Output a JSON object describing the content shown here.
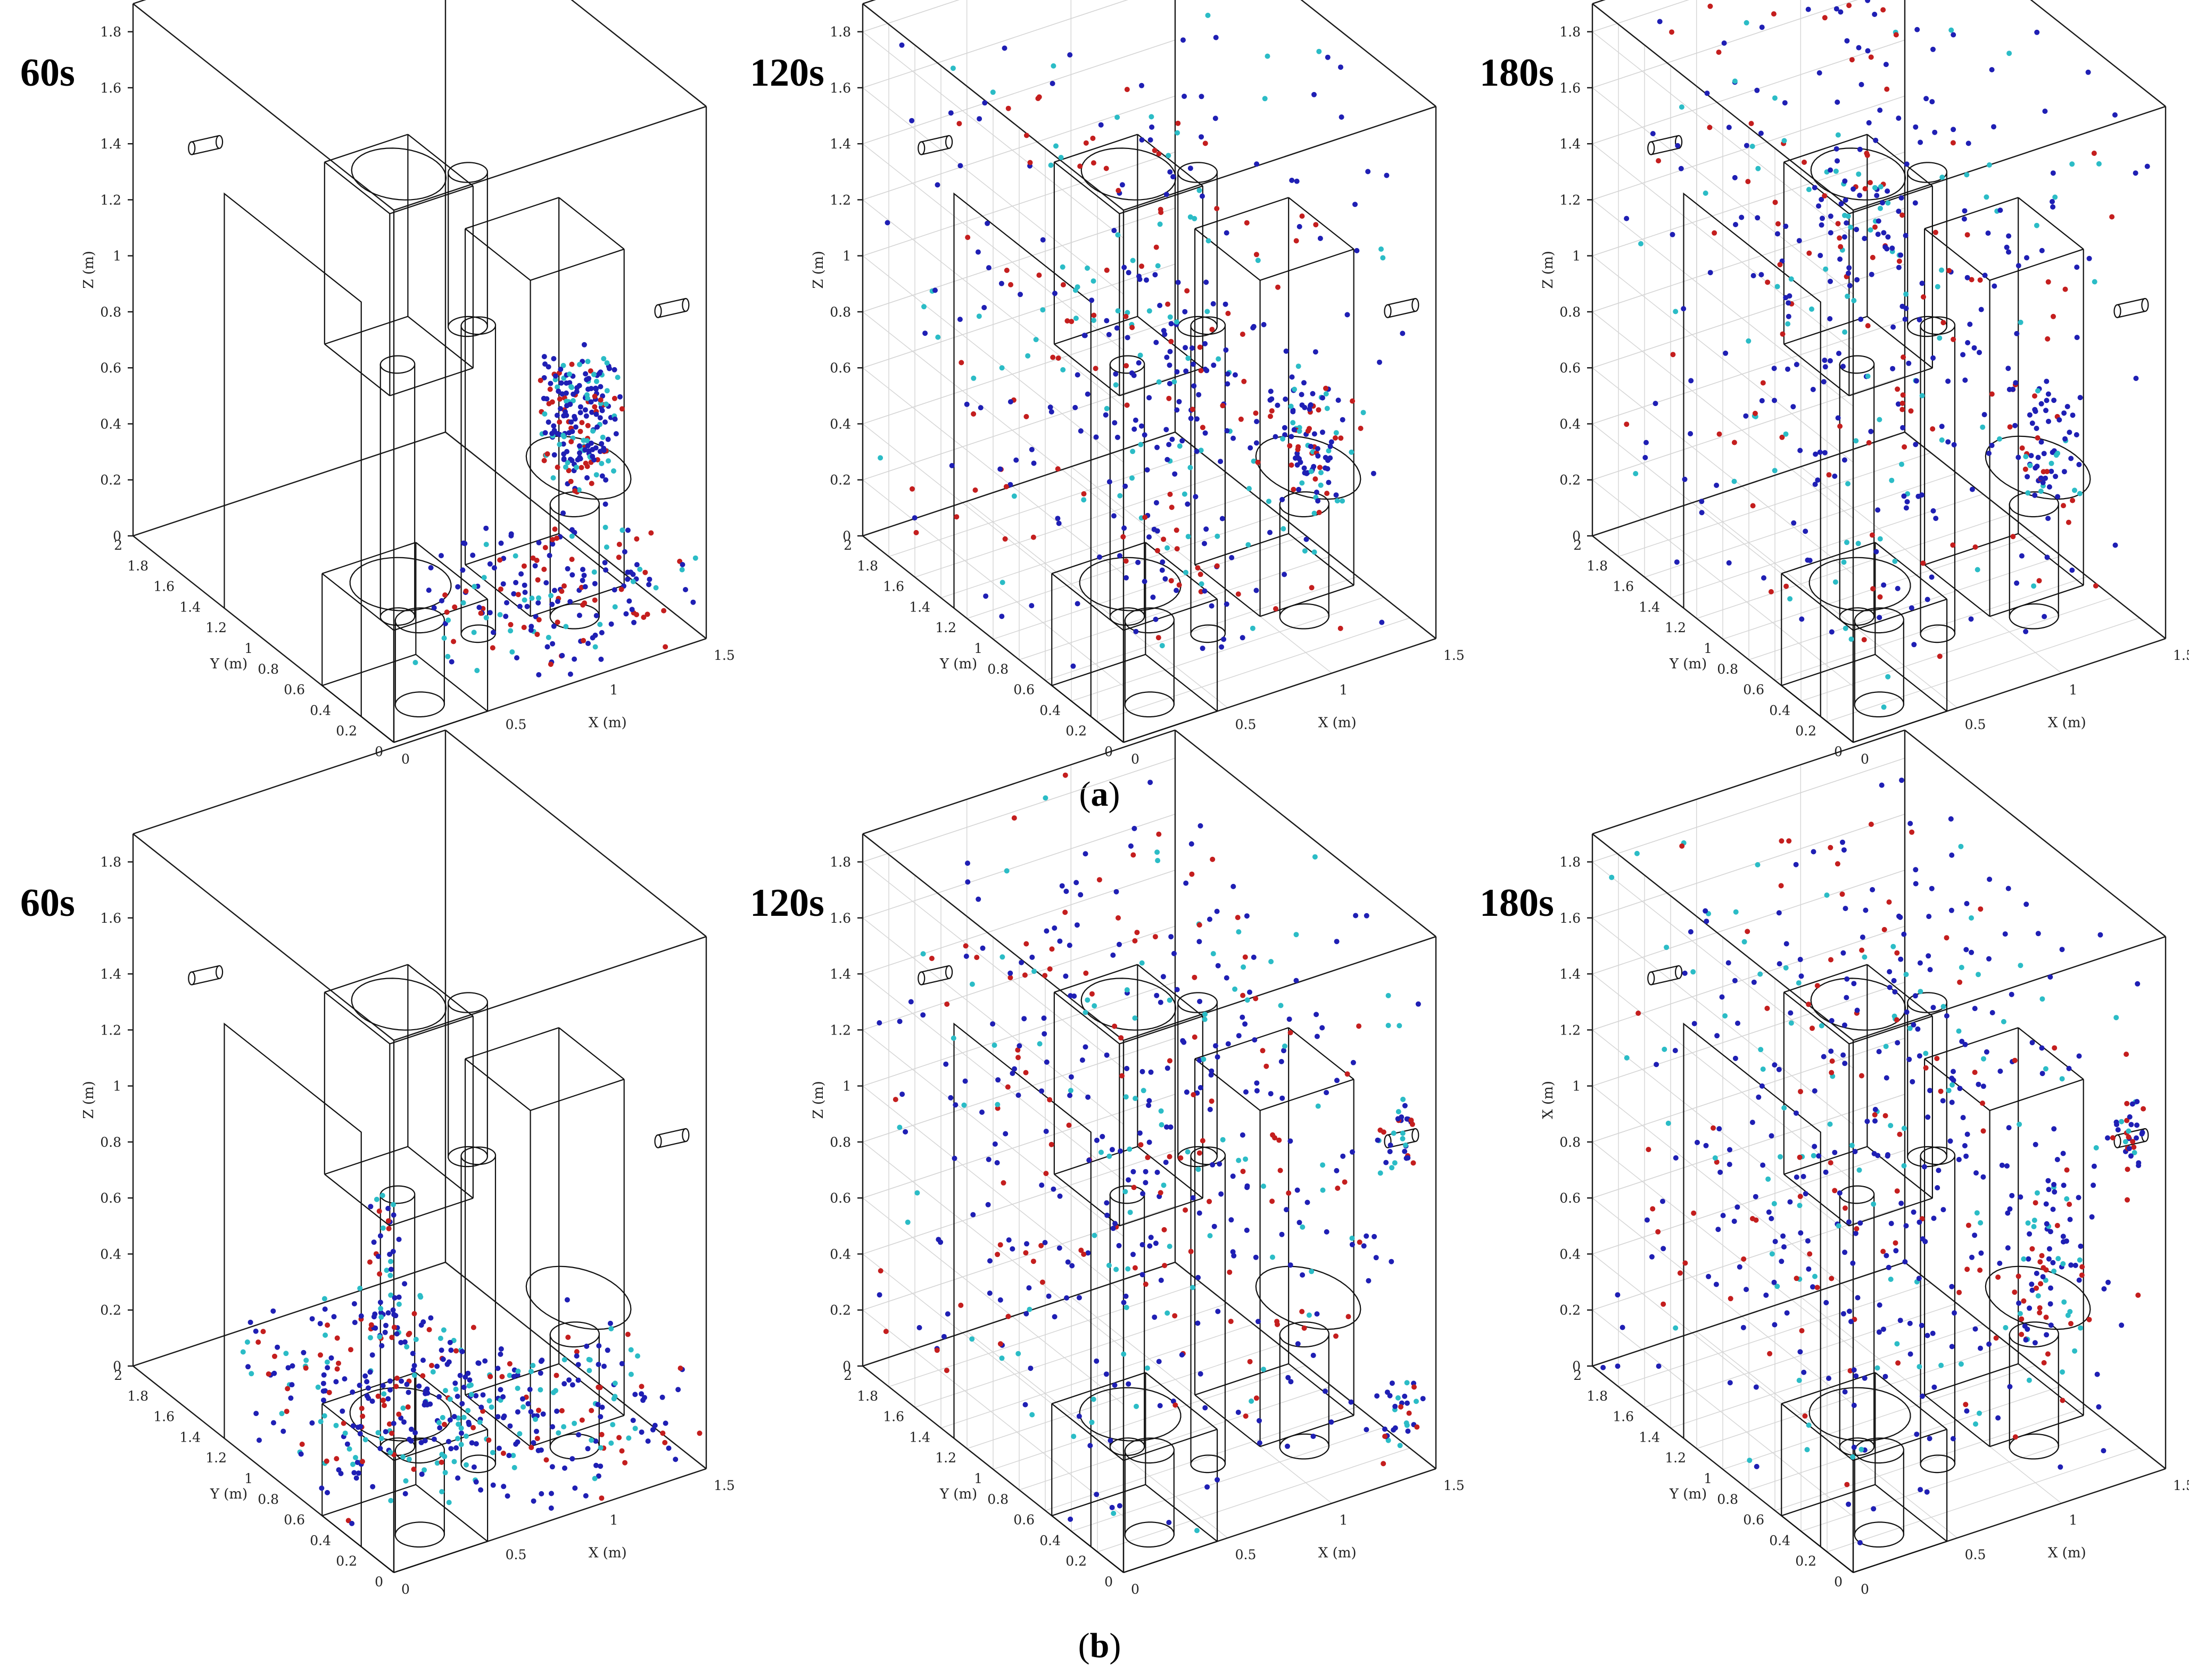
{
  "figure": {
    "row_labels": [
      {
        "paren_open": "(",
        "letter": "a",
        "paren_close": ")"
      },
      {
        "paren_open": "(",
        "letter": "b",
        "paren_close": ")"
      }
    ]
  },
  "colors": {
    "dark_blue": "#1f1fb4",
    "red": "#c41e1e",
    "cyan": "#2bbcc6",
    "box_lines": "#111111",
    "grid": "#d4d4d4"
  },
  "chart_data": [
    {
      "type": "scatter",
      "row": "a",
      "title": "60s",
      "xlabel": "X (m)",
      "ylabel": "Y (m)",
      "zlabel": "Z (m)",
      "xlim": [
        0,
        1.5
      ],
      "ylim": [
        0,
        2
      ],
      "zlim": [
        0,
        1.9
      ],
      "grid": false,
      "xticks": [
        "0",
        "0.5",
        "1",
        "1.5"
      ],
      "yticks": [
        "0",
        "0.2",
        "0.4",
        "0.6",
        "0.8",
        "1",
        "1.2",
        "1.4",
        "1.6",
        "1.8",
        "2"
      ],
      "zticks": [
        "0",
        "0.2",
        "0.4",
        "0.6",
        "0.8",
        "1",
        "1.2",
        "1.4",
        "1.6",
        "1.8"
      ],
      "series": [
        {
          "color": "#1f1fb4"
        },
        {
          "color": "#c41e1e"
        },
        {
          "color": "#2bbcc6"
        }
      ],
      "clusters": [
        {
          "x": [
            1.05,
            1.3
          ],
          "y": [
            0.3,
            0.6
          ],
          "z": [
            0.5,
            0.9
          ],
          "n": 220
        },
        {
          "x": [
            0.7,
            1.5
          ],
          "y": [
            0.0,
            0.8
          ],
          "z": [
            0.0,
            0.3
          ],
          "n": 160
        },
        {
          "x": [
            0.4,
            0.8
          ],
          "y": [
            0.2,
            0.6
          ],
          "z": [
            0.0,
            0.3
          ],
          "n": 25
        }
      ]
    },
    {
      "type": "scatter",
      "row": "a",
      "title": "120s",
      "xlabel": "X (m)",
      "ylabel": "Y (m)",
      "zlabel": "Z (m)",
      "xlim": [
        0,
        1.5
      ],
      "ylim": [
        0,
        2
      ],
      "zlim": [
        0,
        1.9
      ],
      "grid": true,
      "xticks": [
        "0",
        "0.5",
        "1",
        "1.5"
      ],
      "yticks": [
        "0",
        "0.2",
        "0.4",
        "0.6",
        "0.8",
        "1",
        "1.2",
        "1.4",
        "1.6",
        "1.8",
        "2"
      ],
      "zticks": [
        "0",
        "0.2",
        "0.4",
        "0.6",
        "0.8",
        "1",
        "1.2",
        "1.4",
        "1.6",
        "1.8"
      ],
      "series": [
        {
          "color": "#1f1fb4"
        },
        {
          "color": "#c41e1e"
        },
        {
          "color": "#2bbcc6"
        }
      ],
      "clusters": [
        {
          "x": [
            0.0,
            1.5
          ],
          "y": [
            0.0,
            2.0
          ],
          "z": [
            0.0,
            1.9
          ],
          "n": 300
        },
        {
          "x": [
            1.1,
            1.3
          ],
          "y": [
            0.3,
            0.6
          ],
          "z": [
            0.4,
            0.8
          ],
          "n": 90
        },
        {
          "x": [
            0.4,
            0.9
          ],
          "y": [
            0.2,
            1.0
          ],
          "z": [
            0.0,
            1.2
          ],
          "n": 110
        }
      ]
    },
    {
      "type": "scatter",
      "row": "a",
      "title": "180s",
      "xlabel": "X (m)",
      "ylabel": "Y (m)",
      "zlabel": "Z (m)",
      "xlim": [
        0,
        1.5
      ],
      "ylim": [
        0,
        2
      ],
      "zlim": [
        0,
        1.9
      ],
      "grid": true,
      "xticks": [
        "0",
        "0.5",
        "1",
        "1.5"
      ],
      "yticks": [
        "0",
        "0.2",
        "0.4",
        "0.6",
        "0.8",
        "1",
        "1.2",
        "1.4",
        "1.6",
        "1.8",
        "2"
      ],
      "zticks": [
        "0",
        "0.2",
        "0.4",
        "0.6",
        "0.8",
        "1",
        "1.2",
        "1.4",
        "1.6",
        "1.8"
      ],
      "series": [
        {
          "color": "#1f1fb4"
        },
        {
          "color": "#c41e1e"
        },
        {
          "color": "#2bbcc6"
        }
      ],
      "clusters": [
        {
          "x": [
            0.0,
            1.5
          ],
          "y": [
            0.0,
            2.0
          ],
          "z": [
            0.0,
            1.9
          ],
          "n": 380
        },
        {
          "x": [
            1.1,
            1.3
          ],
          "y": [
            0.3,
            0.6
          ],
          "z": [
            0.4,
            0.8
          ],
          "n": 70
        },
        {
          "x": [
            0.5,
            0.8
          ],
          "y": [
            0.9,
            1.2
          ],
          "z": [
            1.2,
            1.5
          ],
          "n": 40
        }
      ]
    },
    {
      "type": "scatter",
      "row": "b",
      "title": "60s",
      "xlabel": "X (m)",
      "ylabel": "Y (m)",
      "zlabel": "Z (m)",
      "xlim": [
        0,
        1.5
      ],
      "ylim": [
        0,
        2
      ],
      "zlim": [
        0,
        1.9
      ],
      "grid": false,
      "xticks": [
        "0",
        "0.5",
        "1",
        "1.5"
      ],
      "yticks": [
        "0",
        "0.2",
        "0.4",
        "0.6",
        "0.8",
        "1",
        "1.2",
        "1.4",
        "1.6",
        "1.8",
        "2"
      ],
      "zticks": [
        "0",
        "0.2",
        "0.4",
        "0.6",
        "0.8",
        "1",
        "1.2",
        "1.4",
        "1.6",
        "1.8"
      ],
      "series": [
        {
          "color": "#1f1fb4"
        },
        {
          "color": "#c41e1e"
        },
        {
          "color": "#2bbcc6"
        }
      ],
      "clusters": [
        {
          "x": [
            0.0,
            0.8
          ],
          "y": [
            0.3,
            1.2
          ],
          "z": [
            0.0,
            0.5
          ],
          "n": 260
        },
        {
          "x": [
            0.6,
            1.5
          ],
          "y": [
            0.0,
            0.9
          ],
          "z": [
            0.0,
            0.3
          ],
          "n": 180
        },
        {
          "x": [
            0.5,
            0.6
          ],
          "y": [
            0.9,
            1.0
          ],
          "z": [
            0.3,
            0.9
          ],
          "n": 40
        }
      ]
    },
    {
      "type": "scatter",
      "row": "b",
      "title": "120s",
      "xlabel": "X (m)",
      "ylabel": "Y (m)",
      "zlabel": "Z (m)",
      "xlim": [
        0,
        1.5
      ],
      "ylim": [
        0,
        2
      ],
      "zlim": [
        0,
        1.9
      ],
      "grid": true,
      "xticks": [
        "0",
        "0.5",
        "1",
        "1.5"
      ],
      "yticks": [
        "0",
        "0.2",
        "0.4",
        "0.6",
        "0.8",
        "1",
        "1.2",
        "1.4",
        "1.6",
        "1.8",
        "2"
      ],
      "zticks": [
        "0",
        "0.2",
        "0.4",
        "0.6",
        "0.8",
        "1",
        "1.2",
        "1.4",
        "1.6",
        "1.8"
      ],
      "series": [
        {
          "color": "#1f1fb4"
        },
        {
          "color": "#c41e1e"
        },
        {
          "color": "#2bbcc6"
        }
      ],
      "clusters": [
        {
          "x": [
            0.0,
            1.5
          ],
          "y": [
            0.0,
            2.0
          ],
          "z": [
            0.0,
            1.9
          ],
          "n": 460
        },
        {
          "x": [
            1.3,
            1.45
          ],
          "y": [
            0.0,
            0.15
          ],
          "z": [
            1.1,
            1.3
          ],
          "n": 30
        },
        {
          "x": [
            1.3,
            1.45
          ],
          "y": [
            0.0,
            0.15
          ],
          "z": [
            0.1,
            0.3
          ],
          "n": 30
        }
      ]
    },
    {
      "type": "scatter",
      "row": "b",
      "title": "180s",
      "xlabel": "X (m)",
      "ylabel": "Y (m)",
      "zlabel": "X (m)",
      "xlim": [
        0,
        1.5
      ],
      "ylim": [
        0,
        2
      ],
      "zlim": [
        0,
        1.9
      ],
      "grid": true,
      "xticks": [
        "0",
        "0.5",
        "1",
        "1.5"
      ],
      "yticks": [
        "0",
        "0.2",
        "0.4",
        "0.6",
        "0.8",
        "1",
        "1.2",
        "1.4",
        "1.6",
        "1.8",
        "2"
      ],
      "zticks": [
        "0",
        "0.2",
        "0.4",
        "0.6",
        "0.8",
        "1",
        "1.2",
        "1.4",
        "1.6",
        "1.8"
      ],
      "series": [
        {
          "color": "#1f1fb4"
        },
        {
          "color": "#c41e1e"
        },
        {
          "color": "#2bbcc6"
        }
      ],
      "clusters": [
        {
          "x": [
            0.0,
            1.5
          ],
          "y": [
            0.0,
            2.0
          ],
          "z": [
            0.0,
            1.9
          ],
          "n": 480
        },
        {
          "x": [
            1.3,
            1.45
          ],
          "y": [
            0.0,
            0.15
          ],
          "z": [
            1.1,
            1.3
          ],
          "n": 35
        },
        {
          "x": [
            1.1,
            1.3
          ],
          "y": [
            0.3,
            0.6
          ],
          "z": [
            0.3,
            0.9
          ],
          "n": 60
        }
      ]
    }
  ]
}
